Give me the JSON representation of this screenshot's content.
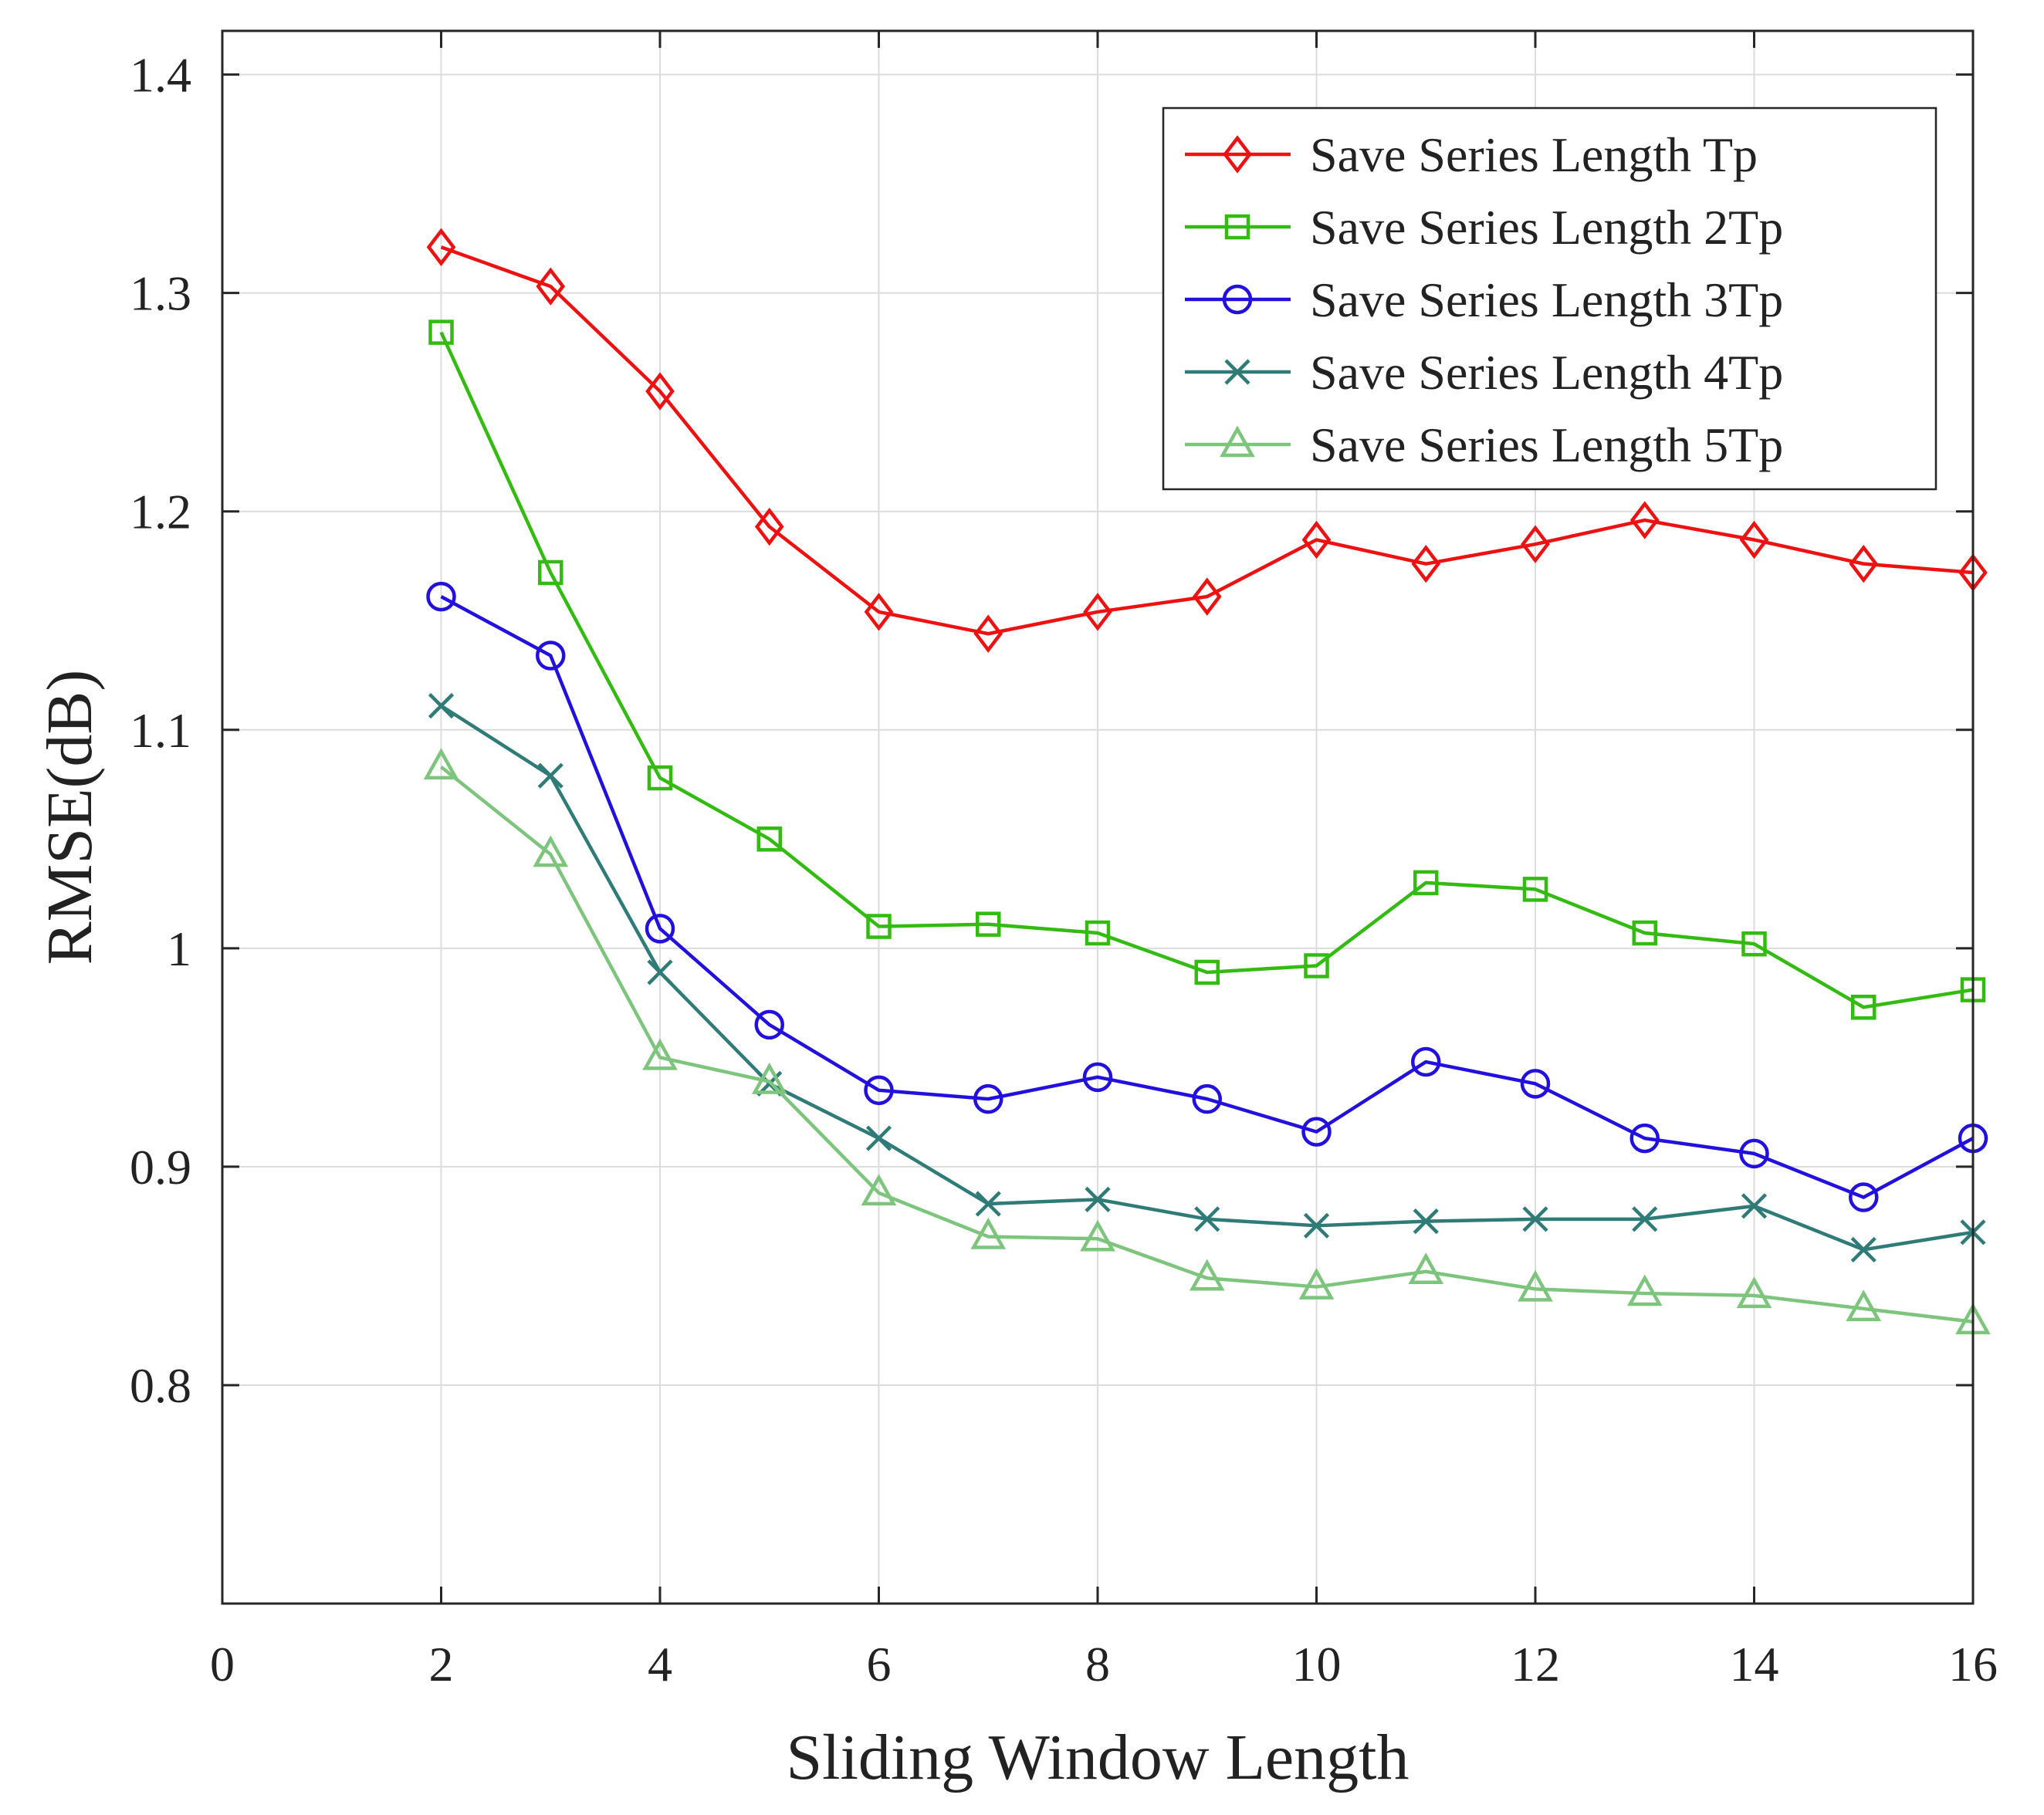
{
  "chart_data": {
    "type": "line",
    "title": "",
    "xlabel": "Sliding Window Length",
    "ylabel": "RMSE(dB)",
    "xlim": [
      0,
      16
    ],
    "ylim": [
      0.7,
      1.42
    ],
    "x_ticks": [
      0,
      2,
      4,
      6,
      8,
      10,
      12,
      14,
      16
    ],
    "y_ticks": [
      0.8,
      0.9,
      1.0,
      1.1,
      1.2,
      1.3,
      1.4
    ],
    "x_tick_labels": [
      "0",
      "2",
      "4",
      "6",
      "8",
      "10",
      "12",
      "14",
      "16"
    ],
    "y_tick_labels": [
      "0.8",
      "0.9",
      "1",
      "1.1",
      "1.2",
      "1.3",
      "1.4"
    ],
    "grid": true,
    "legend_position": "top-right",
    "x": [
      2,
      3,
      4,
      5,
      6,
      7,
      8,
      9,
      10,
      11,
      12,
      13,
      14,
      15,
      16
    ],
    "series": [
      {
        "name": "Save Series Length Tp",
        "color": "#ee1111",
        "marker": "diamond",
        "values": [
          1.321,
          1.303,
          1.255,
          1.193,
          1.154,
          1.144,
          1.154,
          1.161,
          1.187,
          1.176,
          1.185,
          1.196,
          1.187,
          1.176,
          1.172
        ]
      },
      {
        "name": "Save Series Length 2Tp",
        "color": "#33bb11",
        "marker": "square",
        "values": [
          1.282,
          1.172,
          1.078,
          1.05,
          1.01,
          1.011,
          1.007,
          0.989,
          0.992,
          1.03,
          1.027,
          1.007,
          1.002,
          0.973,
          0.981
        ]
      },
      {
        "name": "Save Series Length 3Tp",
        "color": "#2211dd",
        "marker": "circle",
        "values": [
          1.161,
          1.134,
          1.009,
          0.965,
          0.935,
          0.931,
          0.941,
          0.931,
          0.916,
          0.948,
          0.938,
          0.913,
          0.906,
          0.886,
          0.913
        ]
      },
      {
        "name": "Save Series Length 4Tp",
        "color": "#2e7b78",
        "marker": "x",
        "values": [
          1.111,
          1.079,
          0.989,
          0.938,
          0.913,
          0.883,
          0.885,
          0.876,
          0.873,
          0.875,
          0.876,
          0.876,
          0.882,
          0.862,
          0.87
        ]
      },
      {
        "name": "Save Series Length 5Tp",
        "color": "#7dc57d",
        "marker": "triangle",
        "values": [
          1.083,
          1.043,
          0.95,
          0.939,
          0.888,
          0.868,
          0.867,
          0.849,
          0.845,
          0.852,
          0.844,
          0.842,
          0.841,
          0.835,
          0.829
        ]
      }
    ]
  }
}
